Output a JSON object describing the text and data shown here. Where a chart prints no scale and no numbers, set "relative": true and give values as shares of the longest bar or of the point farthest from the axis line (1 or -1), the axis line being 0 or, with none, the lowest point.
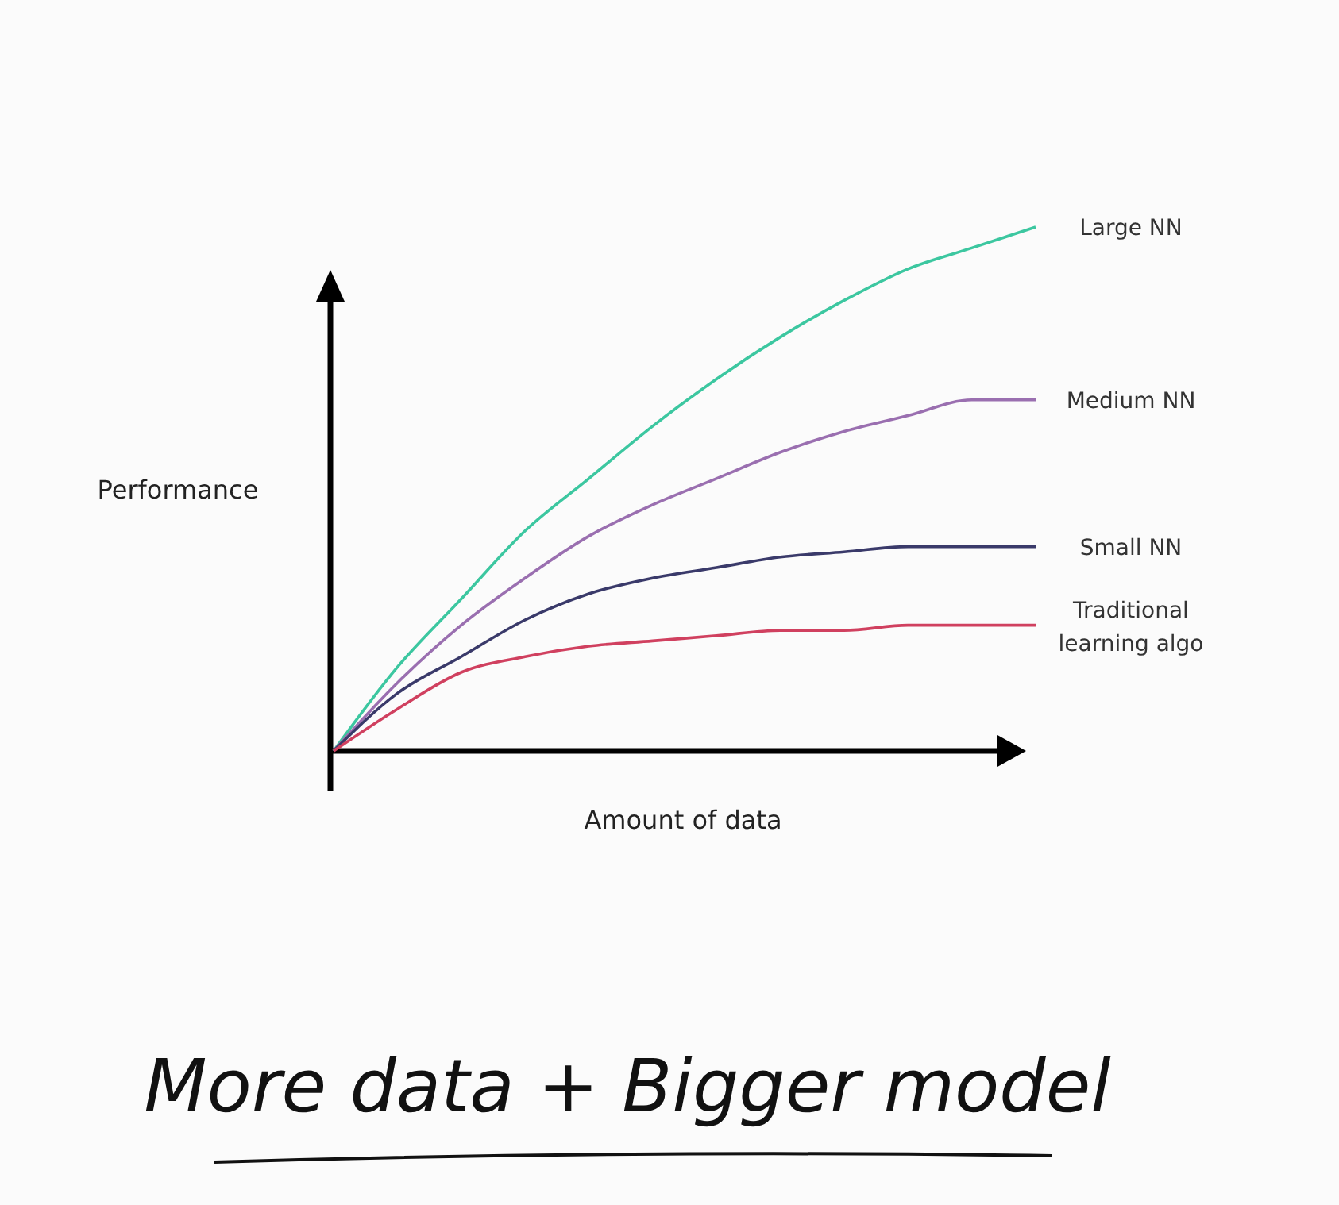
{
  "chart_data": {
    "type": "line",
    "relative": true,
    "xlabel": "Amount of data",
    "ylabel": "Performance",
    "categories": [
      null,
      null,
      null,
      null,
      null,
      null,
      null,
      null,
      null,
      null,
      null,
      null
    ],
    "series": [
      {
        "name": "Large NN",
        "color": "#3cc7a0",
        "values": [
          0,
          0.16,
          0.29,
          0.42,
          0.52,
          0.62,
          0.71,
          0.79,
          0.86,
          0.92,
          0.96,
          1.0
        ]
      },
      {
        "name": "Medium NN",
        "color": "#9a6fb0",
        "values": [
          0,
          0.13,
          0.24,
          0.33,
          0.41,
          0.47,
          0.52,
          0.57,
          0.61,
          0.64,
          0.67,
          0.67
        ]
      },
      {
        "name": "Small NN",
        "color": "#3a3a6a",
        "values": [
          0,
          0.11,
          0.18,
          0.25,
          0.3,
          0.33,
          0.35,
          0.37,
          0.38,
          0.39,
          0.39,
          0.39
        ]
      },
      {
        "name": "Traditional learning algo",
        "color": "#d0405f",
        "values": [
          0,
          0.08,
          0.15,
          0.18,
          0.2,
          0.21,
          0.22,
          0.23,
          0.23,
          0.24,
          0.24,
          0.24
        ]
      }
    ],
    "marker": "none",
    "line_style": "solid",
    "grid": false,
    "legend": false,
    "annotations": [
      "More data + Bigger model"
    ]
  }
}
